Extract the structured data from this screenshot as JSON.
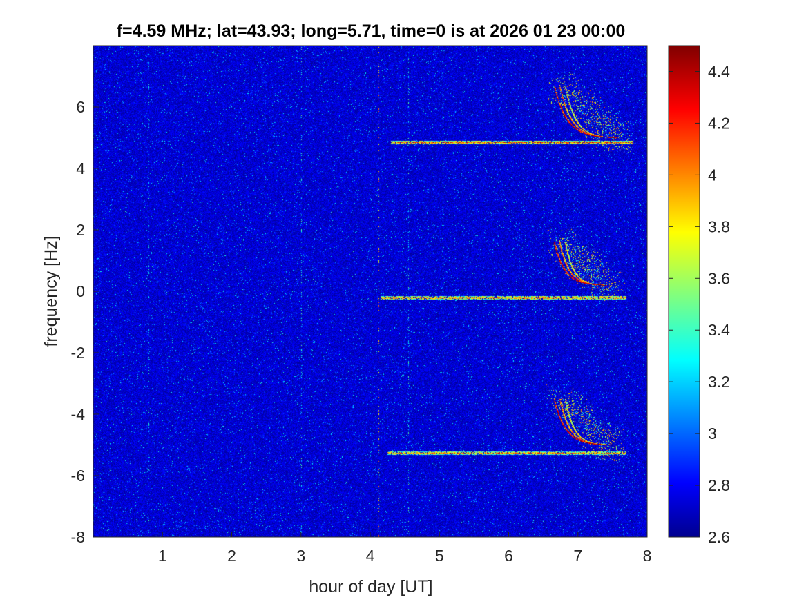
{
  "chart_data": {
    "type": "heatmap",
    "title": "f=4.59 MHz;  lat=43.93; long=5.71, time=0 is at 2026 01 23 00:00",
    "xlabel": "hour of day [UT]",
    "ylabel": "frequency [Hz]",
    "xlim": [
      0,
      8
    ],
    "ylim": [
      -8,
      8
    ],
    "x_ticks": [
      1,
      2,
      3,
      4,
      5,
      6,
      7,
      8
    ],
    "y_ticks": [
      -8,
      -6,
      -4,
      -2,
      0,
      2,
      4,
      6
    ],
    "colorbar": {
      "range": [
        2.6,
        4.5
      ],
      "ticks": [
        2.6,
        2.8,
        3,
        3.2,
        3.4,
        3.6,
        3.8,
        4,
        4.2,
        4.4
      ],
      "colormap": "jet"
    },
    "background_level": 2.75,
    "grid": false,
    "horizontal_traces": [
      {
        "frequency": 4.85,
        "x_start": 4.3,
        "x_end": 7.8,
        "level": 4.1
      },
      {
        "frequency": -0.2,
        "x_start": 4.15,
        "x_end": 7.7,
        "level": 4.1
      },
      {
        "frequency": -5.25,
        "x_start": 4.25,
        "x_end": 7.7,
        "level": 4.0
      }
    ],
    "curved_traces": [
      {
        "x_start": 6.65,
        "x_end": 7.55,
        "f_top": 6.7,
        "f_bottom": 5.0,
        "level": 4.3
      },
      {
        "x_start": 6.65,
        "x_end": 7.4,
        "f_top": 1.6,
        "f_bottom": 0.2,
        "level": 4.3
      },
      {
        "x_start": 6.65,
        "x_end": 7.45,
        "f_top": -3.5,
        "f_bottom": -5.0,
        "level": 4.3
      }
    ],
    "vertical_streaks": [
      {
        "x": 0.8,
        "f_from": -8,
        "f_to": 8,
        "level": 3.2
      },
      {
        "x": 3.0,
        "f_from": -8,
        "f_to": 8,
        "level": 3.3
      },
      {
        "x": 4.12,
        "f_from": -8,
        "f_to": 8,
        "level": 3.9
      },
      {
        "x": 4.55,
        "f_from": -8,
        "f_to": 8,
        "level": 3.3
      },
      {
        "x": 5.05,
        "f_from": -8,
        "f_to": 8,
        "level": 3.2
      }
    ]
  }
}
